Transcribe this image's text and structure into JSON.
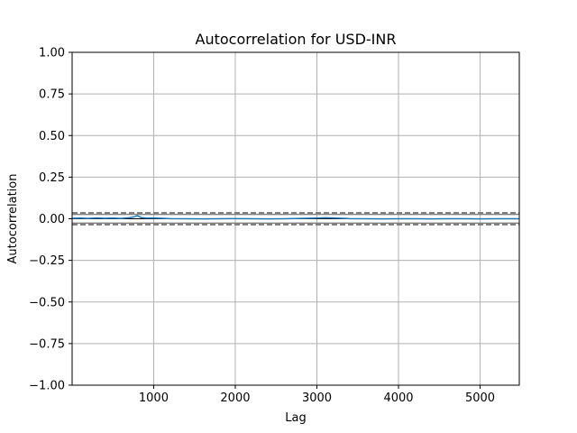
{
  "chart_data": {
    "type": "line",
    "title": "Autocorrelation for USD-INR",
    "xlabel": "Lag",
    "ylabel": "Autocorrelation",
    "xlim": [
      1,
      5480
    ],
    "ylim": [
      -1.0,
      1.0
    ],
    "x_ticks": [
      1000,
      2000,
      3000,
      4000,
      5000
    ],
    "x_tick_labels": [
      "1000",
      "2000",
      "3000",
      "4000",
      "5000"
    ],
    "y_ticks": [
      -1.0,
      -0.75,
      -0.5,
      -0.25,
      0.0,
      0.25,
      0.5,
      0.75,
      1.0
    ],
    "y_tick_labels": [
      "−1.00",
      "−0.75",
      "−0.50",
      "−0.25",
      "0.00",
      "0.25",
      "0.50",
      "0.75",
      "1.00"
    ],
    "grid": true,
    "reference_lines": [
      {
        "y": 0.0,
        "style": "solid",
        "role": "zero"
      },
      {
        "y": 0.0265,
        "style": "solid",
        "role": "95% band"
      },
      {
        "y": -0.0265,
        "style": "solid",
        "role": "95% band"
      },
      {
        "y": 0.0349,
        "style": "dashed",
        "role": "99% band"
      },
      {
        "y": -0.0349,
        "style": "dashed",
        "role": "99% band"
      }
    ],
    "series": [
      {
        "x": [
          1,
          100,
          200,
          300,
          400,
          500,
          600,
          700,
          750,
          800,
          850,
          900,
          1000,
          1100,
          1200,
          1400,
          1600,
          1800,
          2000,
          2200,
          2400,
          2600,
          2800,
          3000,
          3100,
          3200,
          3300,
          3400,
          3600,
          3800,
          4000,
          4200,
          4400,
          4600,
          4800,
          5000,
          5200,
          5400,
          5480
        ],
        "y": [
          0.003,
          0.004,
          0.002,
          0.005,
          0.003,
          0.004,
          0.002,
          0.006,
          0.01,
          0.018,
          0.007,
          0.005,
          0.004,
          0.003,
          0.001,
          0.0,
          -0.001,
          0.0,
          0.001,
          0.0,
          -0.001,
          0.0,
          0.002,
          0.004,
          0.006,
          0.005,
          0.003,
          0.001,
          0.0,
          -0.001,
          0.0,
          0.0,
          -0.001,
          0.0,
          0.0,
          -0.001,
          0.0,
          0.0,
          0.0
        ]
      }
    ],
    "colors": {
      "series": "#1f77b4",
      "reference": "#808080",
      "grid": "#b0b0b0",
      "axes": "#000000",
      "background": "#ffffff"
    }
  }
}
